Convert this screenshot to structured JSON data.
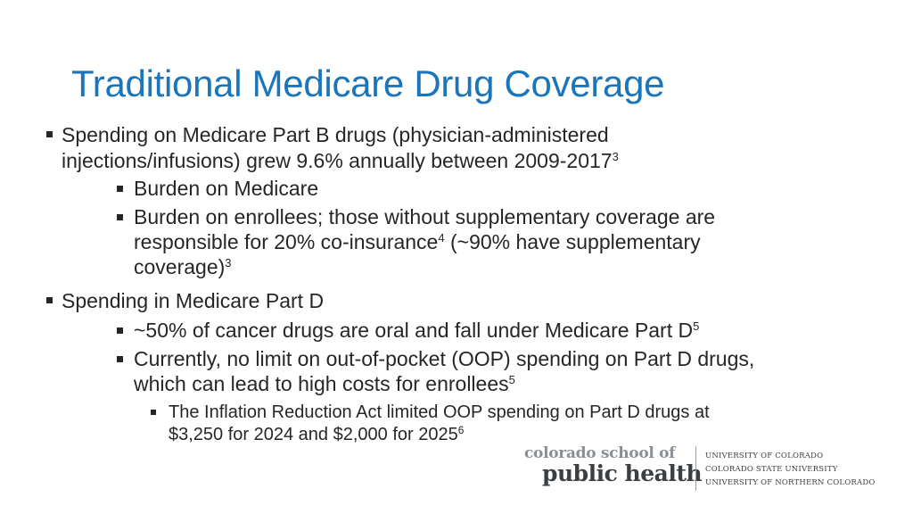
{
  "title": "Traditional Medicare Drug Coverage",
  "bullets": {
    "b1_line1": "Spending on Medicare Part B drugs (physician-administered",
    "b1_line2": "injections/infusions) grew 9.6% annually between 2009-2017",
    "b1_sup": "3",
    "b1a": "Burden on Medicare",
    "b1b_line1": "Burden on enrollees; those without supplementary coverage are",
    "b1b_line2a": "responsible for 20% co-insurance",
    "b1b_sup1": "4",
    "b1b_line2b": " (~90% have supplementary",
    "b1b_line3": "coverage)",
    "b1b_sup2": "3",
    "b2": "Spending in Medicare Part D",
    "b2a": "~50% of cancer drugs are oral and fall under Medicare Part D",
    "b2a_sup": "5",
    "b2b_line1": "Currently, no limit on out-of-pocket (OOP) spending on Part D drugs,",
    "b2b_line2": "which can lead to high costs for enrollees",
    "b2b_sup": "5",
    "b2b1_line1": "The Inflation Reduction Act limited OOP spending on Part D drugs at",
    "b2b1_line2": "$3,250 for 2024 and $2,000 for 2025",
    "b2b1_sup": "6"
  },
  "logo": {
    "top": "colorado school of",
    "bottom": "public health",
    "univ1": "UNIVERSITY OF COLORADO",
    "univ2": "COLORADO STATE UNIVERSITY",
    "univ3": "UNIVERSITY OF NORTHERN COLORADO"
  }
}
